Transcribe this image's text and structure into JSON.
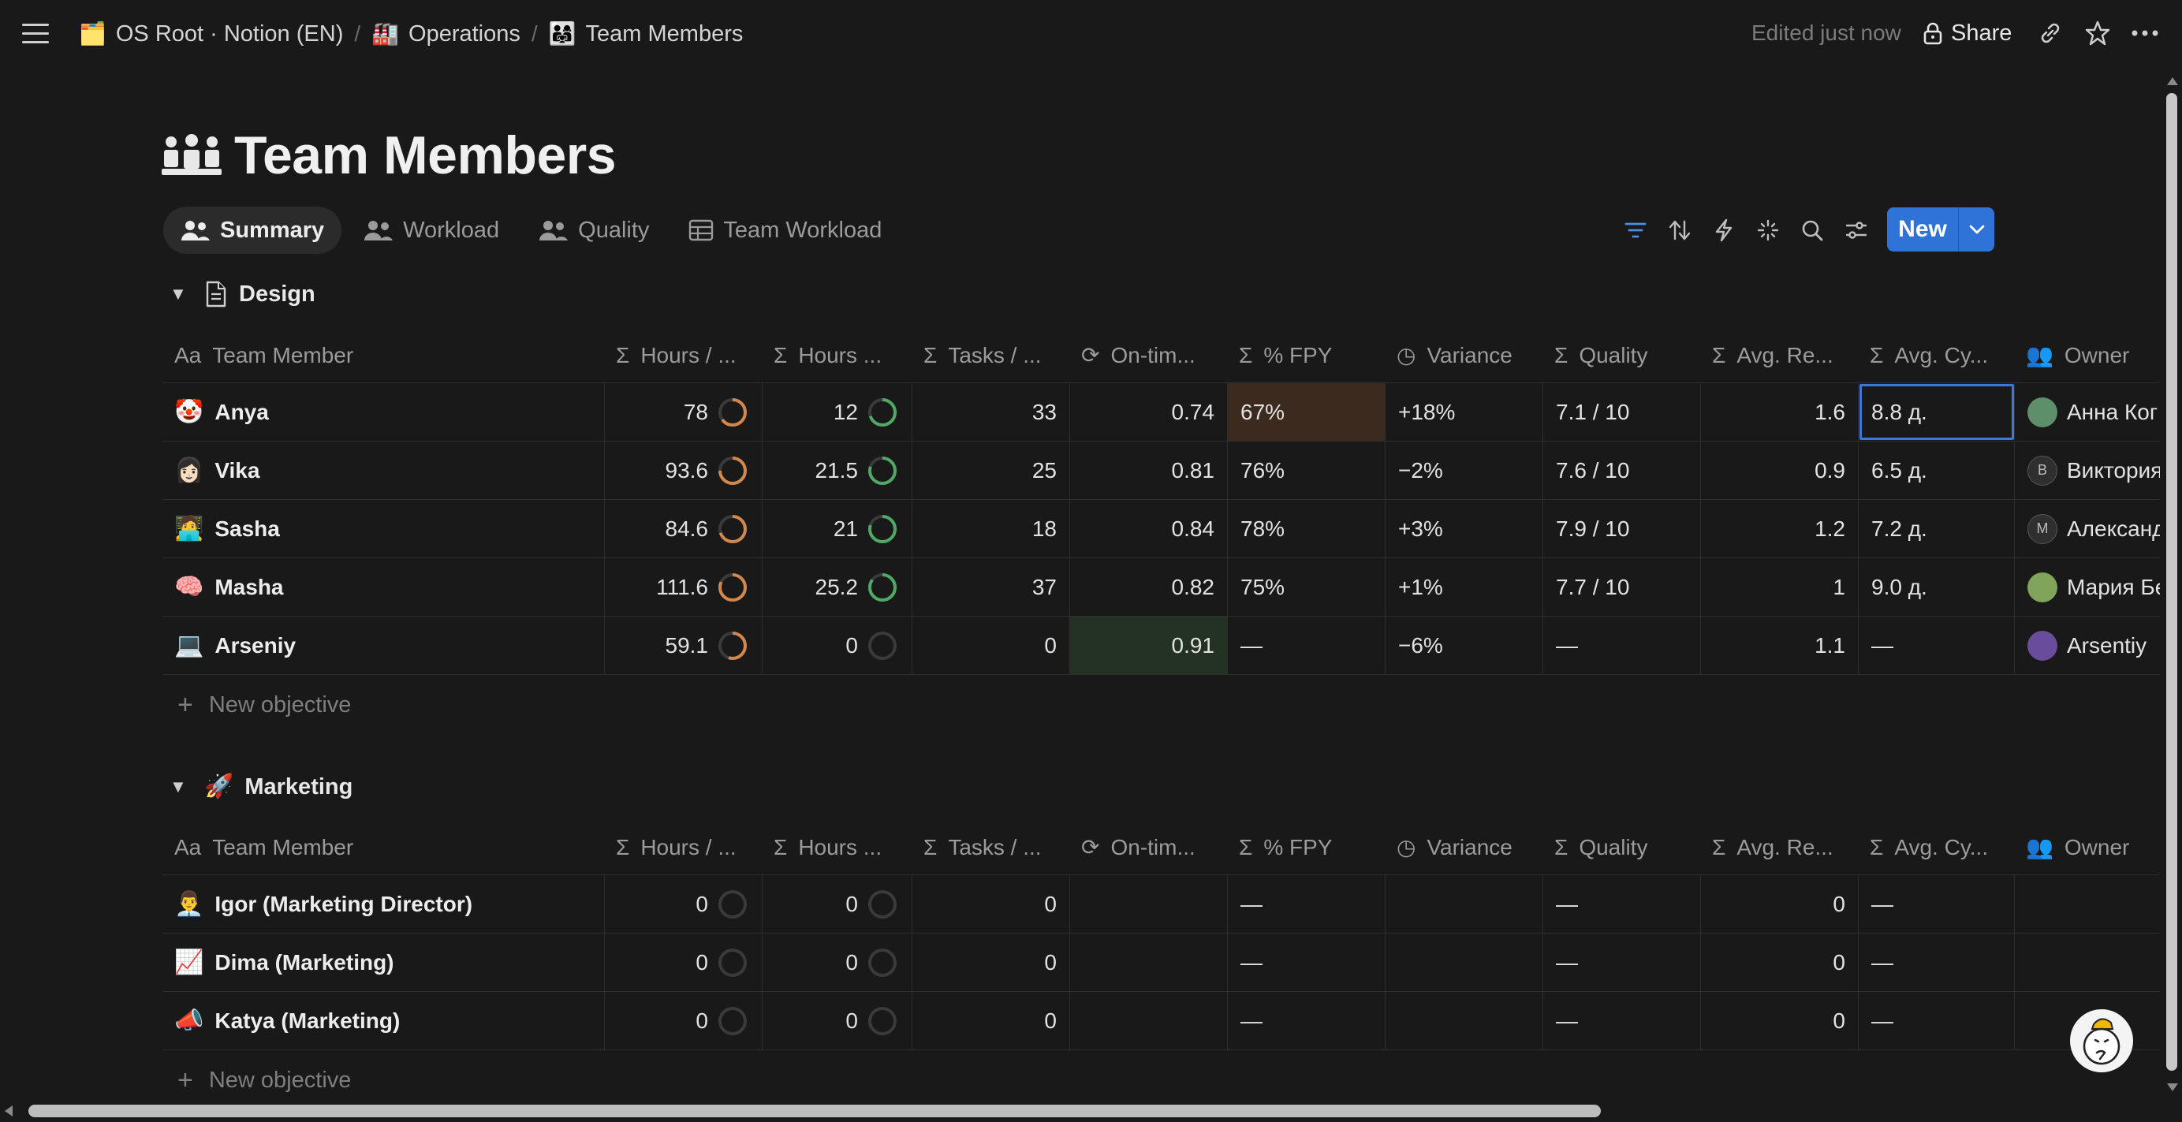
{
  "breadcrumb": [
    {
      "icon": "🗂️",
      "label": "OS Root · Notion (EN)"
    },
    {
      "icon": "🏭",
      "label": "Operations"
    },
    {
      "icon": "👨‍👩‍👧",
      "label": "Team Members"
    }
  ],
  "header": {
    "edited": "Edited just now",
    "share_label": "Share"
  },
  "page": {
    "title": "Team Members"
  },
  "tabs": [
    {
      "label": "Summary",
      "active": true
    },
    {
      "label": "Workload"
    },
    {
      "label": "Quality"
    },
    {
      "label": "Team Workload"
    }
  ],
  "toolbar": {
    "new_label": "New"
  },
  "columns": [
    "Team Member",
    "Hours / ...",
    "Hours ...",
    "Tasks / ...",
    "On-tim...",
    "% FPY",
    "Variance",
    "Quality",
    "Avg. Re...",
    "Avg. Cy...",
    "Owner"
  ],
  "colors": {
    "accent": "#2f72d8",
    "ring_orange": "#d4874a",
    "ring_green": "#4fa866",
    "fpy_highlight": "#3b2a1d",
    "ontime_highlight": "#243224"
  },
  "groups": [
    {
      "name": "Design",
      "icon": "📄",
      "new_label": "New objective",
      "rows": [
        {
          "emoji": "🤡",
          "name": "Anya",
          "hours": "78",
          "hours_fill": 0.65,
          "hours2": "12",
          "hours2_fill": 0.7,
          "tasks": "33",
          "ontime": "0.74",
          "fpy": "67%",
          "variance": "+18%",
          "quality": "7.1 / 10",
          "avg_re": "1.6",
          "avg_cy": "8.8 д.",
          "owner": "Анна Ког"
        },
        {
          "emoji": "👩🏻",
          "name": "Vika",
          "hours": "93.6",
          "hours_fill": 0.75,
          "hours2": "21.5",
          "hours2_fill": 0.8,
          "tasks": "25",
          "ontime": "0.81",
          "fpy": "76%",
          "variance": "−2%",
          "quality": "7.6 / 10",
          "avg_re": "0.9",
          "avg_cy": "6.5 д.",
          "owner": "Виктория"
        },
        {
          "emoji": "🧑‍💻",
          "name": "Sasha",
          "hours": "84.6",
          "hours_fill": 0.7,
          "hours2": "21",
          "hours2_fill": 0.8,
          "tasks": "18",
          "ontime": "0.84",
          "fpy": "78%",
          "variance": "+3%",
          "quality": "7.9 / 10",
          "avg_re": "1.2",
          "avg_cy": "7.2 д.",
          "owner": "Александ"
        },
        {
          "emoji": "🧠",
          "name": "Masha",
          "hours": "111.6",
          "hours_fill": 0.82,
          "hours2": "25.2",
          "hours2_fill": 0.85,
          "tasks": "37",
          "ontime": "0.82",
          "fpy": "75%",
          "variance": "+1%",
          "quality": "7.7 / 10",
          "avg_re": "1",
          "avg_cy": "9.0 д.",
          "owner": "Мария Бе"
        },
        {
          "emoji": "💻",
          "name": "Arseniy",
          "hours": "59.1",
          "hours_fill": 0.55,
          "hours2": "0",
          "hours2_fill": 0,
          "tasks": "0",
          "ontime": "0.91",
          "fpy": "—",
          "variance": "−6%",
          "quality": "—",
          "avg_re": "1.1",
          "avg_cy": "—",
          "owner": "Arsentiy"
        }
      ]
    },
    {
      "name": "Marketing",
      "icon": "🚀",
      "new_label": "New objective",
      "rows": [
        {
          "emoji": "👨‍💼",
          "name": "Igor (Marketing Director)",
          "hours": "0",
          "hours_fill": 0,
          "hours2": "0",
          "hours2_fill": 0,
          "tasks": "0",
          "ontime": "",
          "fpy": "—",
          "variance": "",
          "quality": "—",
          "avg_re": "0",
          "avg_cy": "—",
          "owner": ""
        },
        {
          "emoji": "📈",
          "name": "Dima (Marketing)",
          "hours": "0",
          "hours_fill": 0,
          "hours2": "0",
          "hours2_fill": 0,
          "tasks": "0",
          "ontime": "",
          "fpy": "—",
          "variance": "",
          "quality": "—",
          "avg_re": "0",
          "avg_cy": "—",
          "owner": ""
        },
        {
          "emoji": "📣",
          "name": "Katya (Marketing)",
          "hours": "0",
          "hours_fill": 0,
          "hours2": "0",
          "hours2_fill": 0,
          "tasks": "0",
          "ontime": "",
          "fpy": "—",
          "variance": "",
          "quality": "—",
          "avg_re": "0",
          "avg_cy": "—",
          "owner": ""
        }
      ]
    }
  ]
}
